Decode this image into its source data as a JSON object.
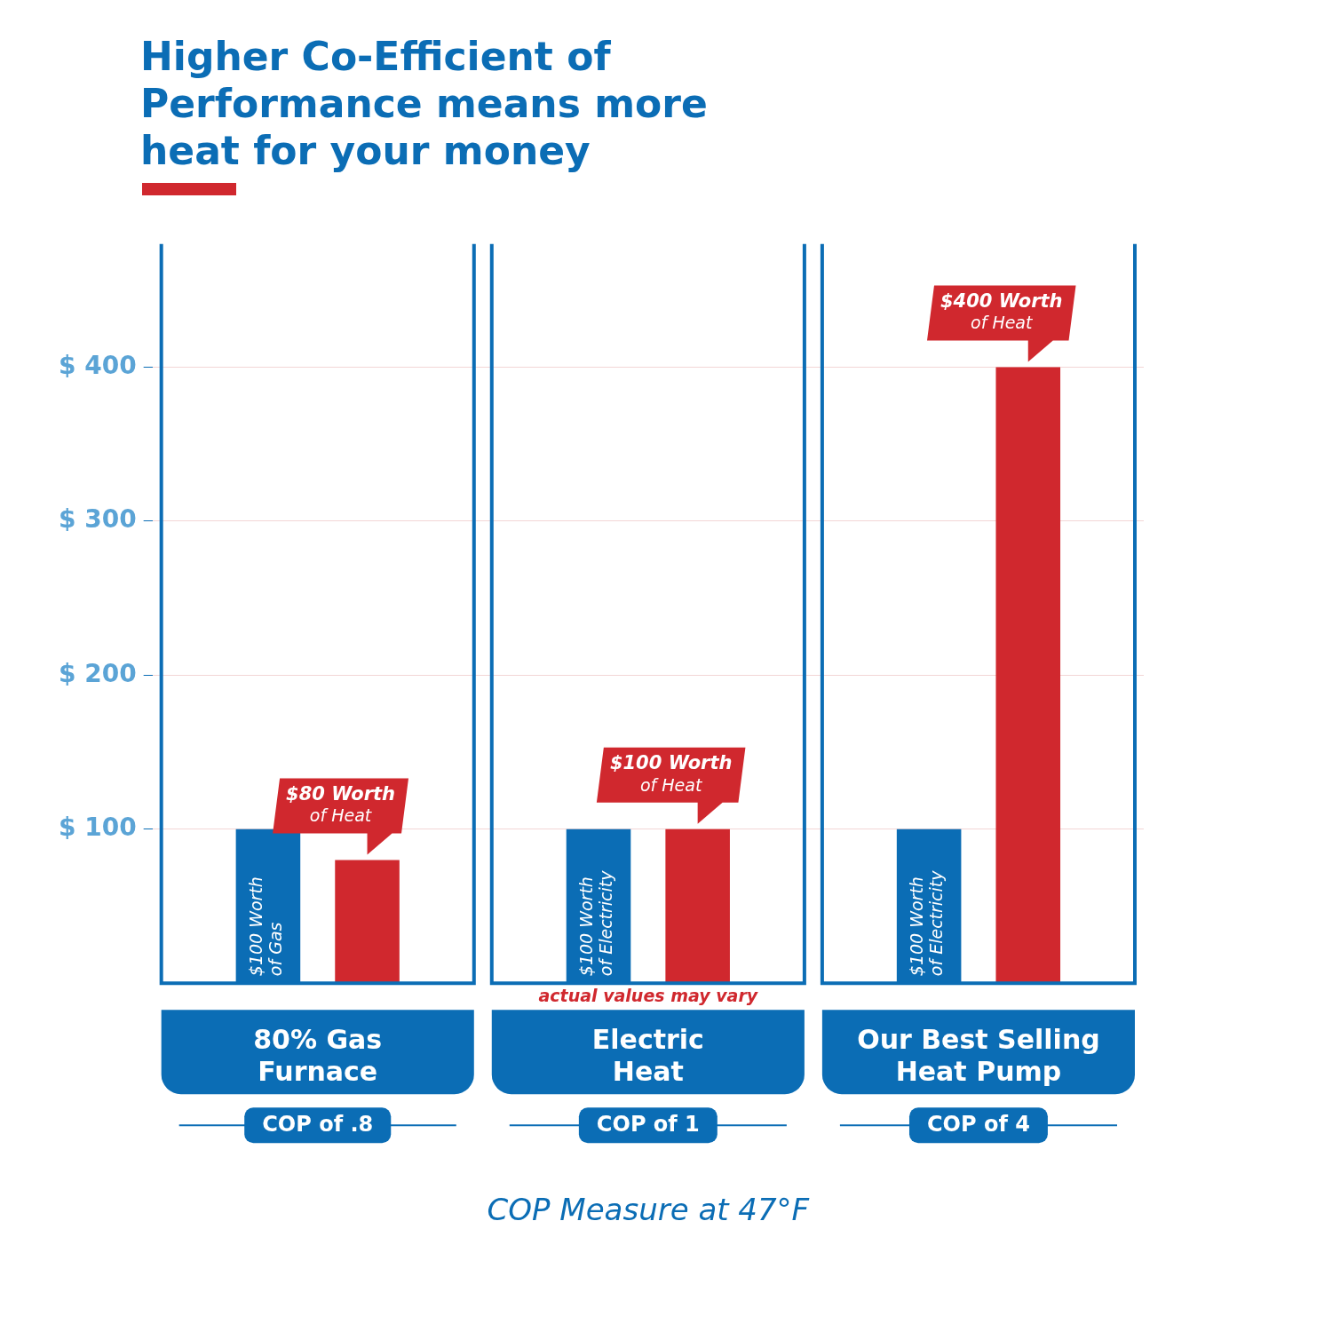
{
  "chart_data": {
    "type": "bar",
    "title": "Higher Co-Efficient of Performance means more heat for your money",
    "categories": [
      "80% Gas Furnace",
      "Electric Heat",
      "Our Best Selling Heat Pump"
    ],
    "series": [
      {
        "color": "#0b6db5",
        "values": [
          100,
          100,
          100
        ],
        "value_labels": [
          "$100 Worth of Gas",
          "$100 Worth of Electricity",
          "$100 Worth of Electricity"
        ]
      },
      {
        "color": "#d0282e",
        "values": [
          80,
          100,
          400
        ],
        "value_labels": [
          "$80 Worth of Heat",
          "$100 Worth of Heat",
          "$400 Worth of Heat"
        ]
      }
    ],
    "ylim": [
      0,
      480
    ],
    "yticks": [
      {
        "value": 100,
        "label": "$ 100"
      },
      {
        "value": 200,
        "label": "$ 200"
      },
      {
        "value": 300,
        "label": "$ 300"
      },
      {
        "value": 400,
        "label": "$ 400"
      }
    ],
    "grid": "y",
    "legend": false,
    "xlabel": "COP Measure at 47°F",
    "annotations": [
      "actual values may vary",
      "COP of .8",
      "COP of 1",
      "COP of 4"
    ]
  }
}
